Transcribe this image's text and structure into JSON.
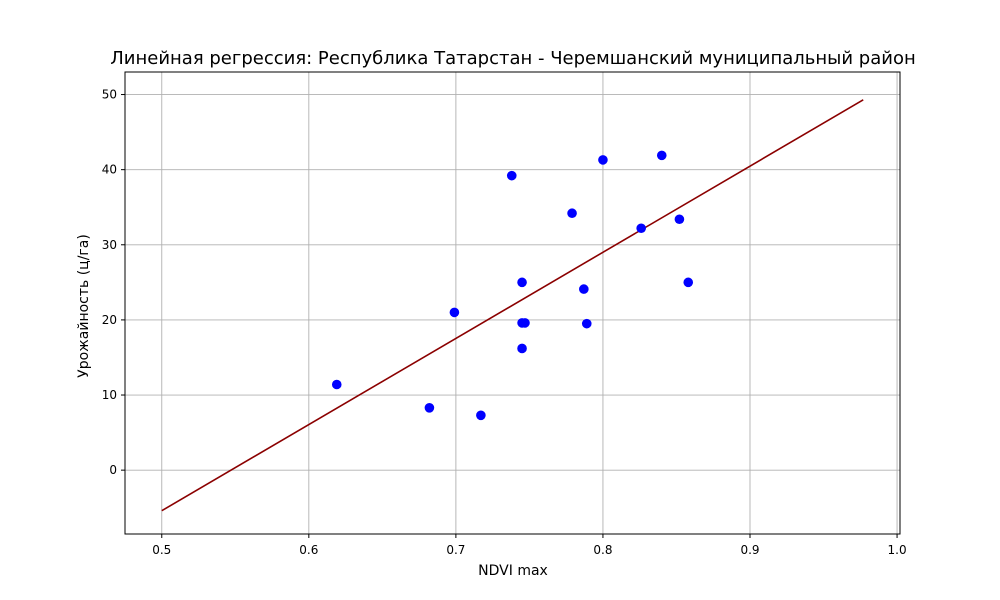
{
  "chart_data": {
    "type": "scatter",
    "title": "Линейная регрессия: Республика Татарстан - Черемшанский муниципальный район",
    "xlabel": "NDVI max",
    "ylabel": "Урожайность (ц/га)",
    "xlim": [
      0.475,
      1.002
    ],
    "ylim": [
      -8.5,
      53.0
    ],
    "x_ticks": [
      "0.5",
      "0.6",
      "0.7",
      "0.8",
      "0.9",
      "1.0"
    ],
    "y_ticks": [
      "0",
      "10",
      "20",
      "30",
      "40",
      "50"
    ],
    "grid": true,
    "colors": {
      "points": "#0000ff",
      "line": "#8b0000",
      "grid": "#b0b0b0"
    },
    "series": [
      {
        "type": "scatter",
        "points": [
          {
            "x": 0.619,
            "y": 11.4
          },
          {
            "x": 0.682,
            "y": 8.3
          },
          {
            "x": 0.699,
            "y": 21.0
          },
          {
            "x": 0.717,
            "y": 7.3
          },
          {
            "x": 0.738,
            "y": 39.2
          },
          {
            "x": 0.745,
            "y": 25.0
          },
          {
            "x": 0.745,
            "y": 19.6
          },
          {
            "x": 0.747,
            "y": 19.6
          },
          {
            "x": 0.745,
            "y": 16.2
          },
          {
            "x": 0.779,
            "y": 34.2
          },
          {
            "x": 0.787,
            "y": 24.1
          },
          {
            "x": 0.789,
            "y": 19.5
          },
          {
            "x": 0.8,
            "y": 41.3
          },
          {
            "x": 0.826,
            "y": 32.2
          },
          {
            "x": 0.84,
            "y": 41.9
          },
          {
            "x": 0.852,
            "y": 33.4
          },
          {
            "x": 0.858,
            "y": 25.0
          }
        ]
      },
      {
        "type": "line",
        "points": [
          {
            "x": 0.5,
            "y": -5.4
          },
          {
            "x": 0.977,
            "y": 49.3
          }
        ]
      }
    ]
  }
}
